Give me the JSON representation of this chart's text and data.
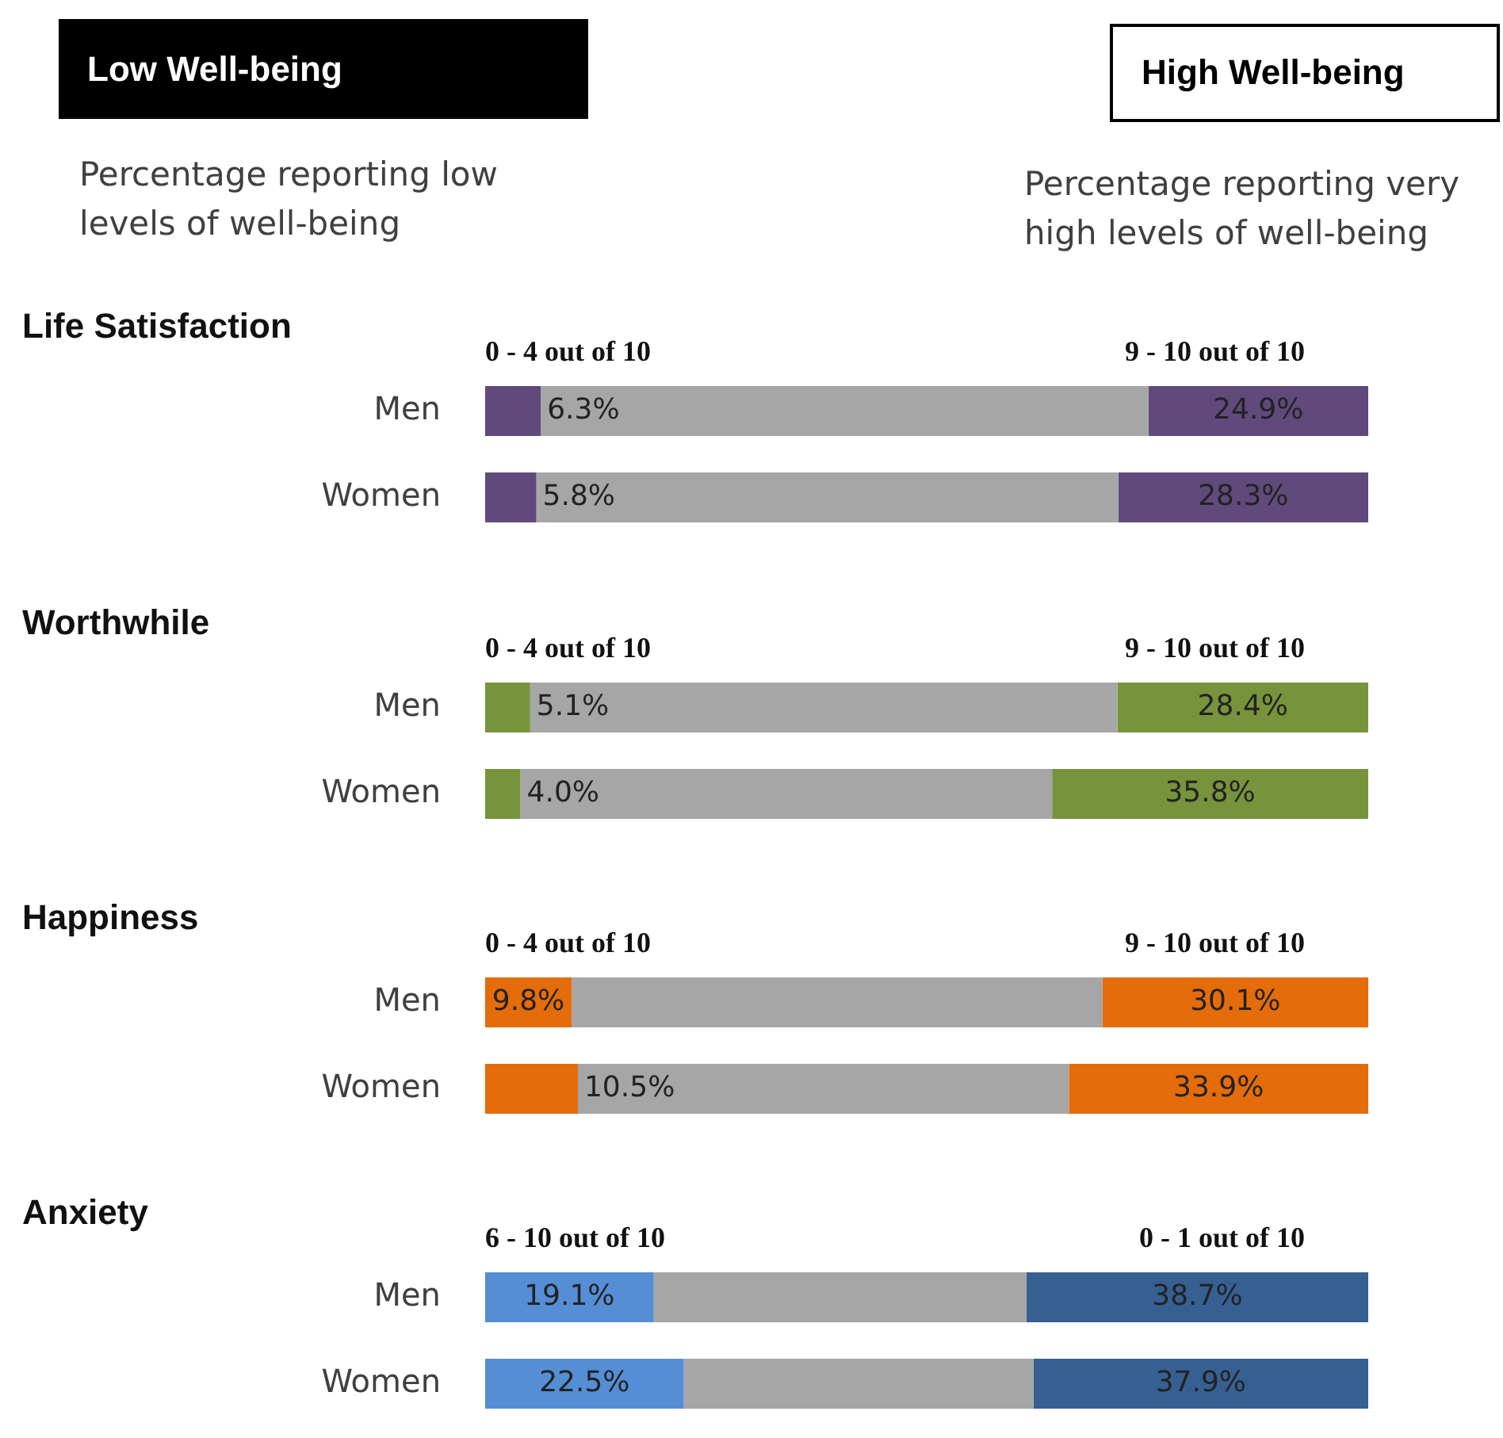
{
  "chart_data": [
    {
      "type": "other",
      "annotations": [
        "Low Well-being",
        "Percentage reporting low levels of well-being",
        "High Well-being",
        "Percentage reporting very high levels of well-being"
      ]
    },
    {
      "type": "bar",
      "orientation": "horizontal",
      "stacked": true,
      "title": "Life Satisfaction",
      "categories": [
        "Men",
        "Women"
      ],
      "xlim": [
        0,
        100
      ],
      "tick_labels": "y",
      "series": [
        {
          "name": "0 - 4 out of 10",
          "color": "#604a7b",
          "values": [
            6.3,
            5.8
          ],
          "value_labels": [
            "6.3%",
            "5.8%"
          ]
        },
        {
          "color": "#a6a6a6",
          "values": [
            68.8,
            65.9
          ]
        },
        {
          "name": "9 - 10 out of 10",
          "color": "#604a7b",
          "values": [
            24.9,
            28.3
          ],
          "value_labels": [
            "24.9%",
            "28.3%"
          ]
        }
      ]
    },
    {
      "type": "bar",
      "orientation": "horizontal",
      "stacked": true,
      "title": "Worthwhile",
      "categories": [
        "Men",
        "Women"
      ],
      "xlim": [
        0,
        100
      ],
      "tick_labels": "y",
      "series": [
        {
          "name": "0 - 4 out of 10",
          "color": "#77933c",
          "values": [
            5.1,
            4.0
          ],
          "value_labels": [
            "5.1%",
            "4.0%"
          ]
        },
        {
          "color": "#a6a6a6",
          "values": [
            66.5,
            60.2
          ]
        },
        {
          "name": "9 - 10 out of 10",
          "color": "#77933c",
          "values": [
            28.4,
            35.8
          ],
          "value_labels": [
            "28.4%",
            "35.8%"
          ]
        }
      ]
    },
    {
      "type": "bar",
      "orientation": "horizontal",
      "stacked": true,
      "title": "Happiness",
      "categories": [
        "Men",
        "Women"
      ],
      "xlim": [
        0,
        100
      ],
      "tick_labels": "y",
      "series": [
        {
          "name": "0 - 4 out of 10",
          "color": "#e46c0a",
          "values": [
            9.8,
            10.5
          ],
          "value_labels": [
            "9.8%",
            "10.5%"
          ]
        },
        {
          "color": "#a6a6a6",
          "values": [
            60.1,
            55.6
          ]
        },
        {
          "name": "9 - 10 out of 10",
          "color": "#e46c0a",
          "values": [
            30.1,
            33.9
          ],
          "value_labels": [
            "30.1%",
            "33.9%"
          ]
        }
      ]
    },
    {
      "type": "bar",
      "orientation": "horizontal",
      "stacked": true,
      "title": "Anxiety",
      "categories": [
        "Men",
        "Women"
      ],
      "xlim": [
        0,
        100
      ],
      "tick_labels": "y",
      "series": [
        {
          "name": "6 - 10 out of 10",
          "color": "#558ed5",
          "values": [
            19.1,
            22.5
          ],
          "value_labels": [
            "19.1%",
            "22.5%"
          ]
        },
        {
          "color": "#a6a6a6",
          "values": [
            42.2,
            39.6
          ]
        },
        {
          "name": "0 - 1 out of 10",
          "color": "#376092",
          "values": [
            38.7,
            37.9
          ],
          "value_labels": [
            "38.7%",
            "37.9%"
          ]
        }
      ]
    }
  ]
}
